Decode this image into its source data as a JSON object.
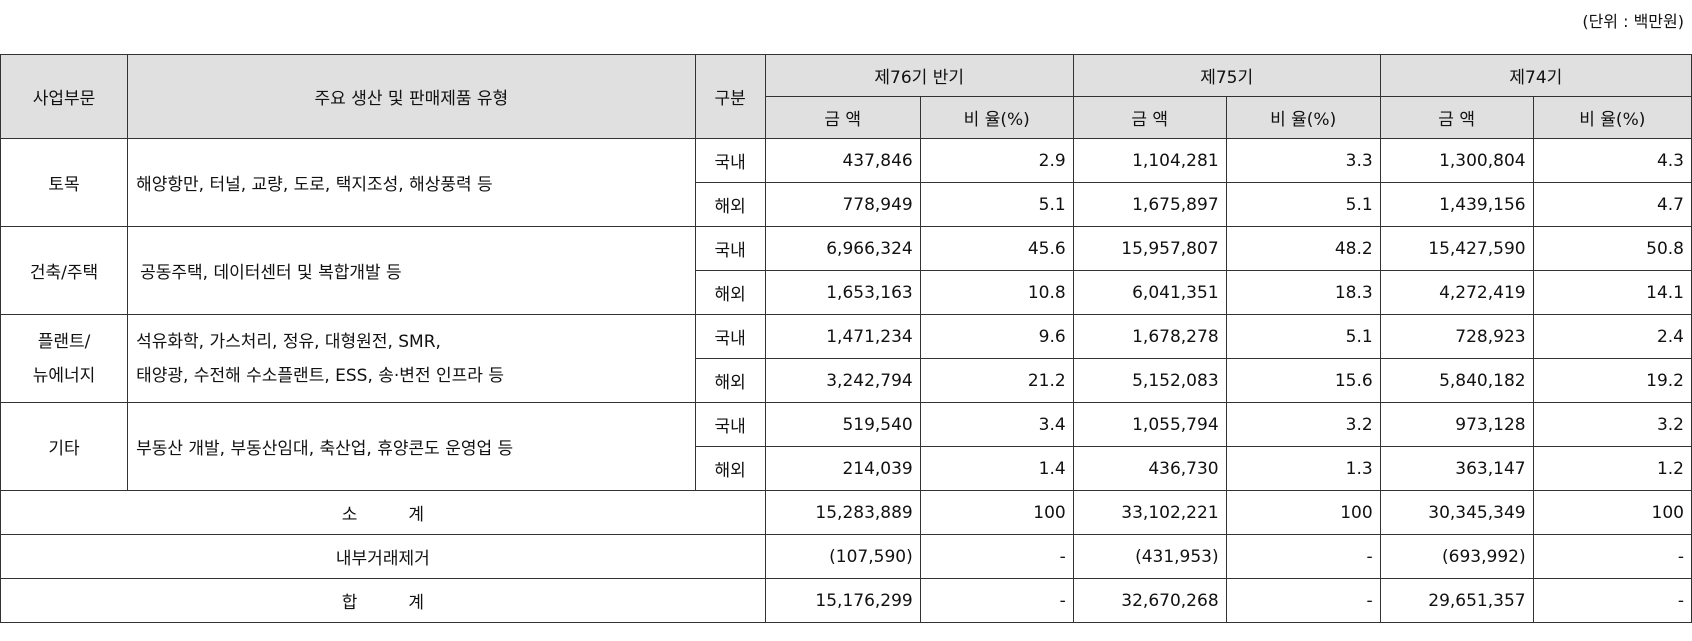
{
  "unit_note": "(단위 : 백만원)",
  "headers": {
    "segment": "사업부문",
    "products": "주요 생산 및 판매제품 유형",
    "division": "구분",
    "periods": [
      "제76기 반기",
      "제75기",
      "제74기"
    ],
    "amount": "금 액",
    "ratio": "비 율(%)"
  },
  "rows": [
    {
      "segment": "토목",
      "products": "해양항만, 터널, 교량, 도로, 택지조성, 해상풍력 등",
      "lines": [
        {
          "type": "국내",
          "v": [
            "437,846",
            "2.9",
            "1,104,281",
            "3.3",
            "1,300,804",
            "4.3"
          ]
        },
        {
          "type": "해외",
          "v": [
            "778,949",
            "5.1",
            "1,675,897",
            "5.1",
            "1,439,156",
            "4.7"
          ]
        }
      ]
    },
    {
      "segment": "건축/주택",
      "products": "공동주택, 데이터센터 및 복합개발 등",
      "lines": [
        {
          "type": "국내",
          "v": [
            "6,966,324",
            "45.6",
            "15,957,807",
            "48.2",
            "15,427,590",
            "50.8"
          ]
        },
        {
          "type": "해외",
          "v": [
            "1,653,163",
            "10.8",
            "6,041,351",
            "18.3",
            "4,272,419",
            "14.1"
          ]
        }
      ]
    },
    {
      "segment_l1": "플랜트/",
      "segment_l2": "뉴에너지",
      "products_l1": "석유화학, 가스처리, 정유, 대형원전, SMR,",
      "products_l2": "태양광, 수전해 수소플랜트, ESS, 송·변전 인프라 등",
      "lines": [
        {
          "type": "국내",
          "v": [
            "1,471,234",
            "9.6",
            "1,678,278",
            "5.1",
            "728,923",
            "2.4"
          ]
        },
        {
          "type": "해외",
          "v": [
            "3,242,794",
            "21.2",
            "5,152,083",
            "15.6",
            "5,840,182",
            "19.2"
          ]
        }
      ]
    },
    {
      "segment": "기타",
      "products": "부동산 개발, 부동산임대, 축산업, 휴양콘도 운영업 등",
      "lines": [
        {
          "type": "국내",
          "v": [
            "519,540",
            "3.4",
            "1,055,794",
            "3.2",
            "973,128",
            "3.2"
          ]
        },
        {
          "type": "해외",
          "v": [
            "214,039",
            "1.4",
            "436,730",
            "1.3",
            "363,147",
            "1.2"
          ]
        }
      ]
    }
  ],
  "totals": [
    {
      "label": "소　　　계",
      "v": [
        "15,283,889",
        "100",
        "33,102,221",
        "100",
        "30,345,349",
        "100"
      ]
    },
    {
      "label": "내부거래제거",
      "v": [
        "(107,590)",
        "-",
        "(431,953)",
        "-",
        "(693,992)",
        "-"
      ]
    },
    {
      "label": "합　　　계",
      "v": [
        "15,176,299",
        "-",
        "32,670,268",
        "-",
        "29,651,357",
        "-"
      ]
    }
  ]
}
